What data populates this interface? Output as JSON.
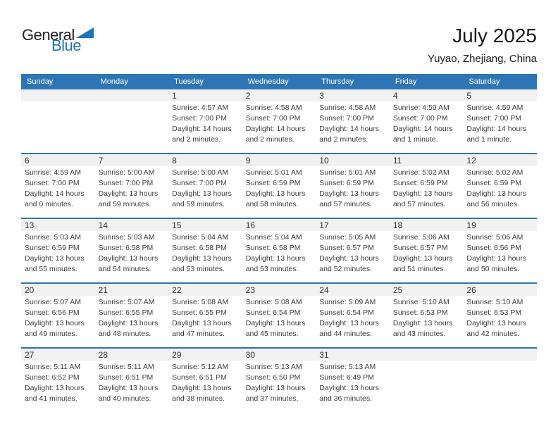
{
  "logo": {
    "text_top": "General",
    "text_bottom": "Blue",
    "triangle_color": "#1B75BC"
  },
  "header": {
    "title": "July 2025",
    "subtitle": "Yuyao, Zhejiang, China"
  },
  "colors": {
    "weekday_header_bg": "#2E75B6",
    "week_divider": "#2E74B5",
    "day_band_bg": "#F1F1F1",
    "weekday_text": "#FFFFFF",
    "body_text": "#3C3C3C"
  },
  "labels": {
    "sunrise": "Sunrise:",
    "sunset": "Sunset:",
    "daylight": "Daylight:"
  },
  "weekdays": [
    "Sunday",
    "Monday",
    "Tuesday",
    "Wednesday",
    "Thursday",
    "Friday",
    "Saturday"
  ],
  "calendar": {
    "weeks": [
      [
        null,
        null,
        {
          "day": 1,
          "sunrise": "4:57 AM",
          "sunset": "7:00 PM",
          "daylight": "14 hours and 2 minutes."
        },
        {
          "day": 2,
          "sunrise": "4:58 AM",
          "sunset": "7:00 PM",
          "daylight": "14 hours and 2 minutes."
        },
        {
          "day": 3,
          "sunrise": "4:58 AM",
          "sunset": "7:00 PM",
          "daylight": "14 hours and 2 minutes."
        },
        {
          "day": 4,
          "sunrise": "4:59 AM",
          "sunset": "7:00 PM",
          "daylight": "14 hours and 1 minute."
        },
        {
          "day": 5,
          "sunrise": "4:59 AM",
          "sunset": "7:00 PM",
          "daylight": "14 hours and 1 minute."
        }
      ],
      [
        {
          "day": 6,
          "sunrise": "4:59 AM",
          "sunset": "7:00 PM",
          "daylight": "14 hours and 0 minutes."
        },
        {
          "day": 7,
          "sunrise": "5:00 AM",
          "sunset": "7:00 PM",
          "daylight": "13 hours and 59 minutes."
        },
        {
          "day": 8,
          "sunrise": "5:00 AM",
          "sunset": "7:00 PM",
          "daylight": "13 hours and 59 minutes."
        },
        {
          "day": 9,
          "sunrise": "5:01 AM",
          "sunset": "6:59 PM",
          "daylight": "13 hours and 58 minutes."
        },
        {
          "day": 10,
          "sunrise": "5:01 AM",
          "sunset": "6:59 PM",
          "daylight": "13 hours and 57 minutes."
        },
        {
          "day": 11,
          "sunrise": "5:02 AM",
          "sunset": "6:59 PM",
          "daylight": "13 hours and 57 minutes."
        },
        {
          "day": 12,
          "sunrise": "5:02 AM",
          "sunset": "6:59 PM",
          "daylight": "13 hours and 56 minutes."
        }
      ],
      [
        {
          "day": 13,
          "sunrise": "5:03 AM",
          "sunset": "6:59 PM",
          "daylight": "13 hours and 55 minutes."
        },
        {
          "day": 14,
          "sunrise": "5:03 AM",
          "sunset": "6:58 PM",
          "daylight": "13 hours and 54 minutes."
        },
        {
          "day": 15,
          "sunrise": "5:04 AM",
          "sunset": "6:58 PM",
          "daylight": "13 hours and 53 minutes."
        },
        {
          "day": 16,
          "sunrise": "5:04 AM",
          "sunset": "6:58 PM",
          "daylight": "13 hours and 53 minutes."
        },
        {
          "day": 17,
          "sunrise": "5:05 AM",
          "sunset": "6:57 PM",
          "daylight": "13 hours and 52 minutes."
        },
        {
          "day": 18,
          "sunrise": "5:06 AM",
          "sunset": "6:57 PM",
          "daylight": "13 hours and 51 minutes."
        },
        {
          "day": 19,
          "sunrise": "5:06 AM",
          "sunset": "6:56 PM",
          "daylight": "13 hours and 50 minutes."
        }
      ],
      [
        {
          "day": 20,
          "sunrise": "5:07 AM",
          "sunset": "6:56 PM",
          "daylight": "13 hours and 49 minutes."
        },
        {
          "day": 21,
          "sunrise": "5:07 AM",
          "sunset": "6:55 PM",
          "daylight": "13 hours and 48 minutes."
        },
        {
          "day": 22,
          "sunrise": "5:08 AM",
          "sunset": "6:55 PM",
          "daylight": "13 hours and 47 minutes."
        },
        {
          "day": 23,
          "sunrise": "5:08 AM",
          "sunset": "6:54 PM",
          "daylight": "13 hours and 45 minutes."
        },
        {
          "day": 24,
          "sunrise": "5:09 AM",
          "sunset": "6:54 PM",
          "daylight": "13 hours and 44 minutes."
        },
        {
          "day": 25,
          "sunrise": "5:10 AM",
          "sunset": "6:53 PM",
          "daylight": "13 hours and 43 minutes."
        },
        {
          "day": 26,
          "sunrise": "5:10 AM",
          "sunset": "6:53 PM",
          "daylight": "13 hours and 42 minutes."
        }
      ],
      [
        {
          "day": 27,
          "sunrise": "5:11 AM",
          "sunset": "6:52 PM",
          "daylight": "13 hours and 41 minutes."
        },
        {
          "day": 28,
          "sunrise": "5:11 AM",
          "sunset": "6:51 PM",
          "daylight": "13 hours and 40 minutes."
        },
        {
          "day": 29,
          "sunrise": "5:12 AM",
          "sunset": "6:51 PM",
          "daylight": "13 hours and 38 minutes."
        },
        {
          "day": 30,
          "sunrise": "5:13 AM",
          "sunset": "6:50 PM",
          "daylight": "13 hours and 37 minutes."
        },
        {
          "day": 31,
          "sunrise": "5:13 AM",
          "sunset": "6:49 PM",
          "daylight": "13 hours and 36 minutes."
        },
        null,
        null
      ]
    ]
  }
}
